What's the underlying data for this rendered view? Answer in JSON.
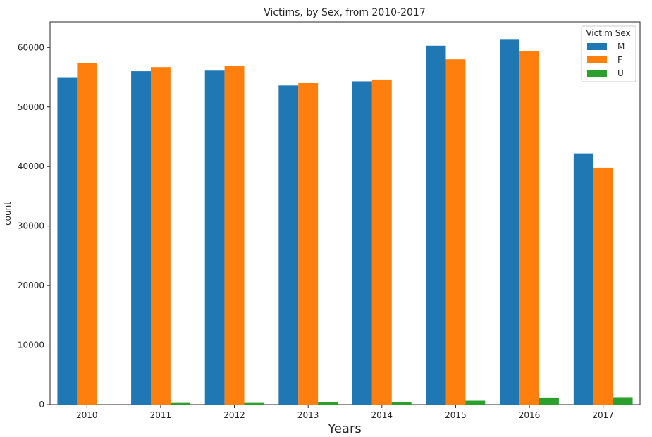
{
  "chart_data": {
    "type": "bar",
    "title": "Victims, by Sex, from 2010-2017",
    "xlabel": "Years",
    "ylabel": "count",
    "categories": [
      "2010",
      "2011",
      "2012",
      "2013",
      "2014",
      "2015",
      "2016",
      "2017"
    ],
    "series": [
      {
        "name": "M",
        "color": "#1f77b4",
        "values": [
          55000,
          56000,
          56100,
          53600,
          54300,
          60300,
          61300,
          42200
        ]
      },
      {
        "name": "F",
        "color": "#ff7f0e",
        "values": [
          57400,
          56700,
          56900,
          54000,
          54600,
          58000,
          59400,
          39800
        ]
      },
      {
        "name": "U",
        "color": "#2ca02c",
        "values": [
          0,
          280,
          280,
          380,
          380,
          650,
          1200,
          1250
        ]
      }
    ],
    "ylim": [
      0,
      64300
    ],
    "yticks": [
      0,
      10000,
      20000,
      30000,
      40000,
      50000,
      60000
    ],
    "grid": false,
    "legend": {
      "title": "Victim Sex",
      "placement": "top-right"
    }
  }
}
